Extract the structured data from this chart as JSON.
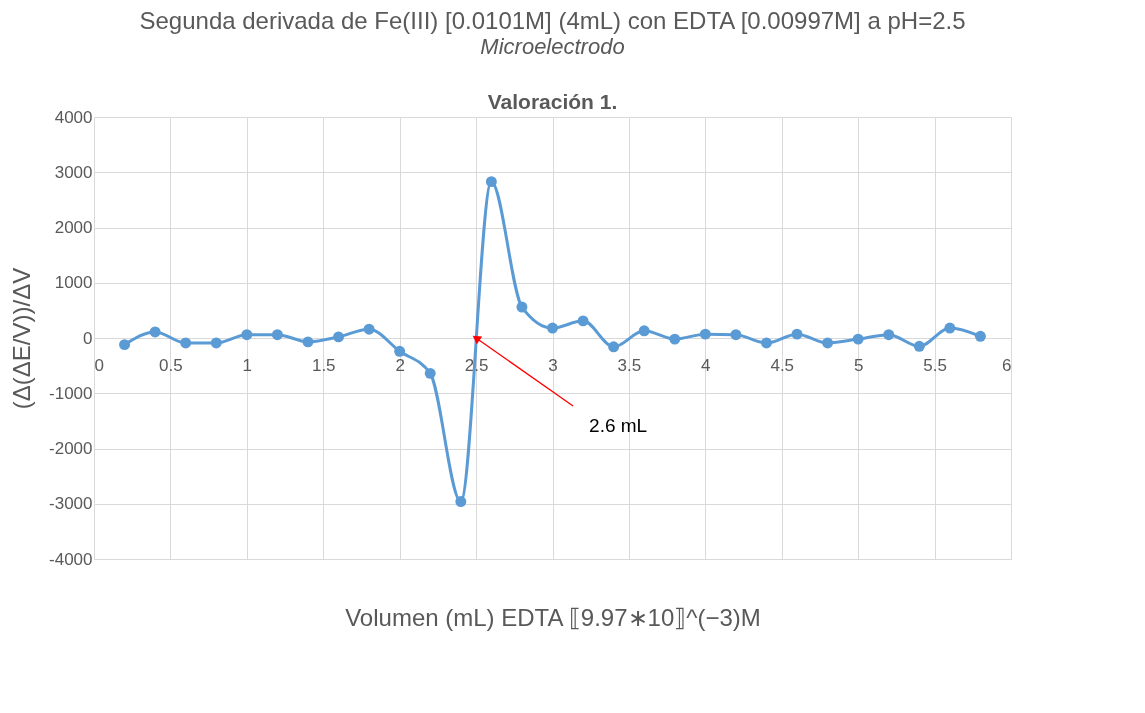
{
  "chart_data": {
    "type": "line",
    "title": "Segunda derivada de Fe(III) [0.0101M] (4mL) con EDTA [0.00997M] a pH=2.5",
    "subtitle": "Microelectrodo",
    "xlabel": "Volumen (mL) EDTA ⟦9.97∗10⟧^(−3)M",
    "ylabel": "(Δ(ΔE/V))/ΔV",
    "x": [
      0.2,
      0.4,
      0.6,
      0.8,
      1.0,
      1.2,
      1.4,
      1.6,
      1.8,
      2.0,
      2.2,
      2.4,
      2.6,
      2.8,
      3.0,
      3.2,
      3.4,
      3.6,
      3.8,
      4.0,
      4.2,
      4.4,
      4.6,
      4.8,
      5.0,
      5.2,
      5.4,
      5.6,
      5.8
    ],
    "series": [
      {
        "color": "#5b9bd5",
        "values": [
          -120,
          110,
          -90,
          -90,
          60,
          60,
          -70,
          20,
          160,
          -240,
          -640,
          -2960,
          2830,
          560,
          180,
          310,
          -160,
          130,
          -20,
          70,
          60,
          -90,
          70,
          -90,
          -20,
          60,
          -150,
          180,
          30
        ]
      }
    ],
    "xlim": [
      0,
      6
    ],
    "xticks": [
      0,
      0.5,
      1,
      1.5,
      2,
      2.5,
      3,
      3.5,
      4,
      4.5,
      5,
      5.5,
      6
    ],
    "ylim": [
      -4000,
      4000
    ],
    "yticks": [
      -4000,
      -3000,
      -2000,
      -1000,
      0,
      1000,
      2000,
      3000,
      4000
    ],
    "grid": true,
    "marker": "circle",
    "line_style": "solid",
    "annotations": [
      "Valoración 1.",
      {
        "text": "2.6 mL",
        "x": 2.5,
        "y": 0
      }
    ]
  }
}
